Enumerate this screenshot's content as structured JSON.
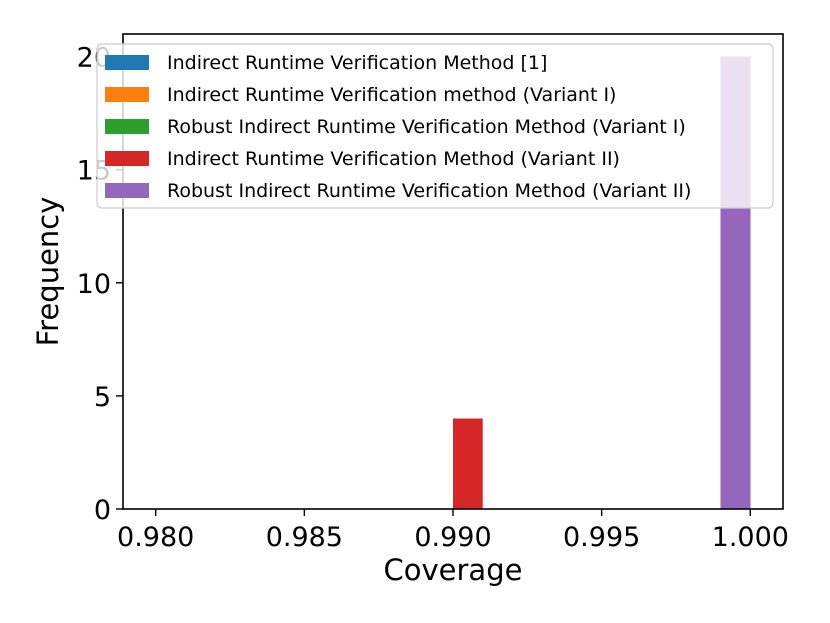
{
  "chart_data": {
    "type": "bar",
    "xlabel": "Coverage",
    "ylabel": "Frequency",
    "xlim": [
      0.9789,
      1.0011
    ],
    "ylim": [
      0,
      21
    ],
    "x_ticks": [
      "0.980",
      "0.985",
      "0.990",
      "0.995",
      "1.000"
    ],
    "x_tick_values": [
      0.98,
      0.985,
      0.99,
      0.995,
      1.0
    ],
    "y_ticks": [
      "0",
      "5",
      "10",
      "15",
      "20"
    ],
    "y_tick_values": [
      0,
      5,
      10,
      15,
      20
    ],
    "grid": false,
    "legend_position": "top-right",
    "series": [
      {
        "name": "Indirect Runtime Verification Method [1]",
        "color": "#1f77b4",
        "bins": [
          {
            "x0": 0.999,
            "x1": 1.0,
            "count": 20
          }
        ]
      },
      {
        "name": "Indirect Runtime Verification method (Variant I)",
        "color": "#ff7f0e",
        "bins": [
          {
            "x0": 0.999,
            "x1": 1.0,
            "count": 20
          }
        ]
      },
      {
        "name": "Robust Indirect Runtime Verification Method (Variant I)",
        "color": "#2ca02c",
        "bins": [
          {
            "x0": 0.999,
            "x1": 1.0,
            "count": 20
          }
        ]
      },
      {
        "name": "Indirect Runtime Verification Method (Variant II)",
        "color": "#d62728",
        "bins": [
          {
            "x0": 0.99,
            "x1": 0.991,
            "count": 4
          },
          {
            "x0": 0.999,
            "x1": 1.0,
            "count": 16
          }
        ]
      },
      {
        "name": "Robust Indirect Runtime Verification Method (Variant II)",
        "color": "#9467bd",
        "bins": [
          {
            "x0": 0.999,
            "x1": 1.0,
            "count": 20
          }
        ]
      }
    ]
  }
}
